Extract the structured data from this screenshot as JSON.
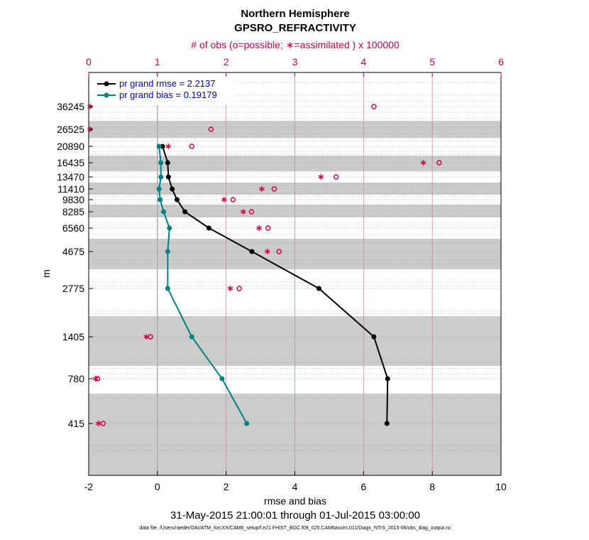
{
  "chart_data": {
    "type": "line",
    "title_line1": "Northern Hemisphere",
    "title_line2": "GPSRO_REFRACTIVITY",
    "top_axis_label": "# of obs (o=possible; ∗=assimilated ) x 100000",
    "xlabel": "rmse and bias",
    "ylabel": "m",
    "date_range": "31-May-2015 21:00:01 through 01-Jul-2015 03:00:00",
    "footnote": "data file: /Users/raeder/DAI/ATM_forcXX/CAM6_setup/f.e21.FHIST_BGC.f09_025.CAM6assim.011/Diags_NTrS_2015-06/obs_diag_output.nc",
    "xlim": [
      -2,
      10
    ],
    "x_ticks": [
      "-2",
      "0",
      "2",
      "4",
      "6",
      "8",
      "10"
    ],
    "top_xlim": [
      0,
      6
    ],
    "top_ticks": [
      "0",
      "1",
      "2",
      "3",
      "4",
      "5",
      "6"
    ],
    "levels": [
      "36245",
      "26525",
      "20890",
      "16435",
      "13470",
      "11410",
      "9830",
      "8285",
      "6560",
      "4675",
      "2775",
      "1405",
      "780",
      "415"
    ],
    "series": [
      {
        "name": "pr grand rmse",
        "legend": "pr grand rmse = 2.2137",
        "color": "#000000",
        "values": [
          null,
          null,
          0.15,
          0.3,
          0.32,
          0.43,
          0.57,
          0.8,
          1.5,
          2.75,
          4.7,
          6.3,
          6.7,
          6.68
        ]
      },
      {
        "name": "pr grand bias",
        "legend": "pr grand bias = 0.19179",
        "color": "#008080",
        "values": [
          null,
          null,
          0.05,
          0.1,
          0.1,
          0.05,
          0.08,
          0.18,
          0.35,
          0.3,
          0.3,
          1.0,
          1.88,
          2.6
        ]
      }
    ],
    "obs_possible": [
      4.15,
      1.78,
      1.5,
      5.1,
      3.6,
      2.7,
      2.1,
      2.37,
      2.61,
      2.77,
      2.19,
      0.9,
      0.13,
      0.21
    ],
    "obs_assimilated": [
      0.02,
      0.02,
      1.16,
      4.87,
      3.38,
      2.52,
      1.97,
      2.25,
      2.48,
      2.6,
      2.06,
      0.84,
      0.1,
      0.14
    ]
  }
}
